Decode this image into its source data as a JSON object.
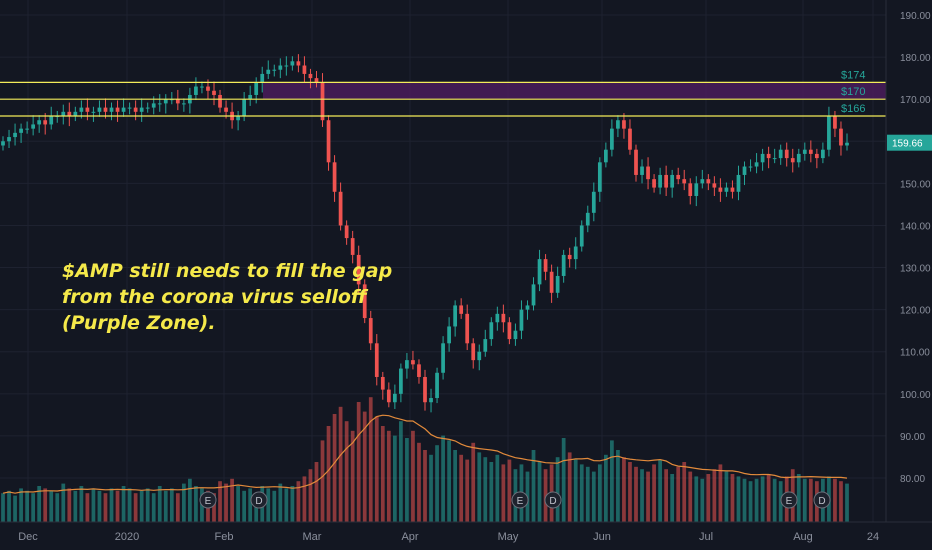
{
  "chart_data": {
    "type": "candlestick",
    "ticker": "AMP",
    "x_labels": [
      "Dec",
      "2020",
      "Feb",
      "Mar",
      "Apr",
      "May",
      "Jun",
      "Jul",
      "Aug",
      "24"
    ],
    "y_ticks": [
      80,
      90,
      100,
      110,
      120,
      130,
      140,
      150,
      160,
      170,
      180,
      190
    ],
    "ylim": [
      73,
      193
    ],
    "last_price": "159.66",
    "levels": [
      {
        "label": "$174",
        "value": 174
      },
      {
        "label": "$170",
        "value": 170
      },
      {
        "label": "$166",
        "value": 166
      }
    ],
    "gap_zone": {
      "from": 170,
      "to": 174,
      "color": "#4a1c5a",
      "start": "Feb"
    },
    "annotation": [
      "$AMP still needs to fill the gap",
      "from the corona virus selloff",
      "(Purple Zone)."
    ],
    "earnings_markers": [
      "E",
      "D",
      "E",
      "D",
      "E",
      "D"
    ],
    "close_series": [
      160,
      161,
      162,
      163,
      163,
      164,
      165,
      164,
      166,
      166,
      167,
      166,
      167,
      168,
      167,
      167,
      168,
      167,
      168,
      167,
      168,
      168,
      167,
      168,
      168,
      169,
      169,
      170,
      170,
      169,
      169,
      171,
      173,
      173,
      172,
      171,
      168,
      167,
      165,
      166,
      170,
      171,
      174,
      176,
      177,
      177,
      178,
      178,
      179,
      178,
      176,
      175,
      174,
      165,
      155,
      148,
      140,
      137,
      133,
      126,
      118,
      112,
      104,
      101,
      98,
      100,
      106,
      108,
      107,
      104,
      98,
      99,
      105,
      112,
      116,
      121,
      119,
      112,
      108,
      110,
      113,
      117,
      119,
      117,
      113,
      115,
      120,
      121,
      126,
      132,
      129,
      124,
      128,
      133,
      132,
      135,
      140,
      143,
      148,
      155,
      158,
      163,
      165,
      163,
      158,
      152,
      154,
      151,
      149,
      152,
      149,
      152,
      151,
      150,
      147,
      150,
      151,
      150,
      149,
      148,
      149,
      148,
      152,
      154,
      154,
      155,
      157,
      156,
      156,
      158,
      156,
      155,
      157,
      158,
      157,
      156,
      158,
      166,
      163,
      159,
      159.66
    ],
    "volume_series": [
      12,
      13,
      11,
      14,
      13,
      12,
      15,
      14,
      13,
      12,
      16,
      14,
      13,
      15,
      12,
      14,
      13,
      12,
      14,
      13,
      15,
      14,
      12,
      13,
      14,
      12,
      15,
      13,
      14,
      12,
      16,
      18,
      15,
      14,
      13,
      12,
      17,
      16,
      18,
      15,
      13,
      14,
      12,
      15,
      14,
      13,
      16,
      14,
      15,
      17,
      19,
      22,
      25,
      34,
      40,
      45,
      48,
      42,
      38,
      50,
      46,
      52,
      44,
      40,
      38,
      36,
      42,
      35,
      38,
      33,
      30,
      28,
      32,
      36,
      34,
      30,
      28,
      26,
      33,
      29,
      27,
      25,
      28,
      24,
      26,
      22,
      24,
      21,
      30,
      25,
      22,
      24,
      27,
      35,
      29,
      26,
      24,
      23,
      21,
      24,
      28,
      34,
      30,
      27,
      25,
      23,
      22,
      21,
      24,
      26,
      22,
      20,
      23,
      25,
      21,
      19,
      18,
      20,
      22,
      24,
      21,
      20,
      19,
      18,
      17,
      18,
      19,
      20,
      18,
      17,
      19,
      22,
      20,
      18,
      18,
      17,
      18,
      19,
      18,
      17,
      16
    ],
    "moving_average": "orange"
  }
}
